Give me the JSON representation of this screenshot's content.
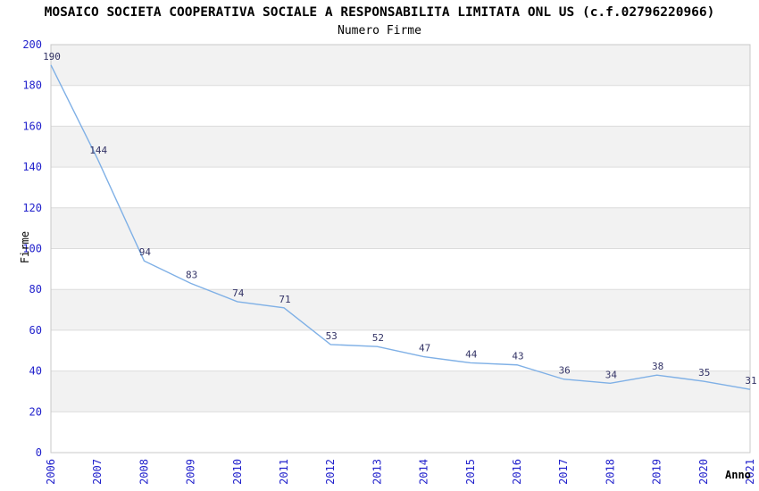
{
  "chart_data": {
    "type": "line",
    "title": "MOSAICO SOCIETA COOPERATIVA SOCIALE A RESPONSABILITA LIMITATA ONL US (c.f.02796220966)",
    "subtitle": "Numero Firme",
    "xlabel": "Anno",
    "ylabel": "Firme",
    "x": [
      2006,
      2007,
      2008,
      2009,
      2010,
      2011,
      2012,
      2013,
      2014,
      2015,
      2016,
      2017,
      2018,
      2019,
      2020,
      2021
    ],
    "values": [
      190,
      144,
      94,
      83,
      74,
      71,
      53,
      52,
      47,
      44,
      43,
      36,
      34,
      38,
      35,
      31
    ],
    "ylim": [
      0,
      200
    ],
    "yticks": [
      0,
      20,
      40,
      60,
      80,
      100,
      120,
      140,
      160,
      180,
      200
    ],
    "grid": true,
    "legend": "none",
    "banded_background": true,
    "data_labels_shown": true,
    "colors": {
      "line": "#7fb0e6",
      "tick_label": "#2222cc",
      "data_label": "#333366",
      "band_alt": "#f2f2f2",
      "band_main": "#ffffff",
      "grid_line": "#dcdcdc",
      "plot_border": "#c8c8c8",
      "text": "#000000",
      "background": "#ffffff"
    }
  }
}
